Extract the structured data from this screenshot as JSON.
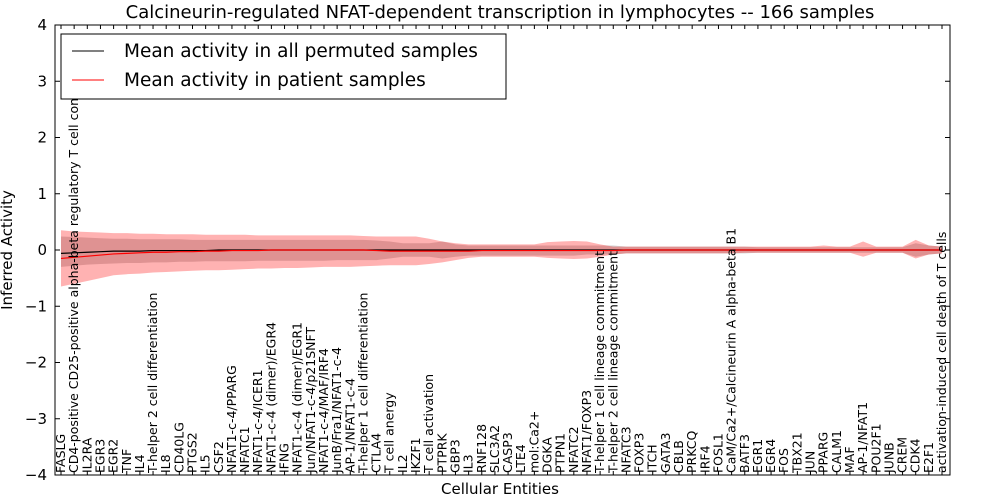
{
  "chart_data": {
    "type": "line",
    "title": "Calcineurin-regulated NFAT-dependent transcription in lymphocytes -- 166 samples",
    "xlabel": "Cellular Entities",
    "ylabel": "Inferred Activity",
    "ylim": [
      -4,
      4
    ],
    "yticks": [
      -4,
      -3,
      -2,
      -1,
      0,
      1,
      2,
      3,
      4
    ],
    "ytick_labels": [
      "−4",
      "−3",
      "−2",
      "−1",
      "0",
      "1",
      "2",
      "3",
      "4"
    ],
    "legend_position": "upper-left",
    "categories": [
      "FASLG",
      "CD4-positive CD25-positive alpha-beta regulatory T cell commitment",
      "IL2RA",
      "EGR3",
      "EGR2",
      "TNF",
      "IL4",
      "T-helper 2 cell differentiation",
      "IL8",
      "CD40LG",
      "PTGS2",
      "IL5",
      "CSF2",
      "NFAT1-c-4/PPARG",
      "NFATC1",
      "NFAT1-c-4/ICER1",
      "NFAT1-c-4 (dimer)/EGR4",
      "IFNG",
      "NFAT1-c-4 (dimer)/EGR1",
      "Jun/NFAT1-c-4/p21SNFT",
      "NFAT1-c-4/MAF/IRF4",
      "JunB/Fra1/NFAT1-c-4",
      "AP-1/NFAT1-c-4",
      "T-helper 1 cell differentiation",
      "CTLA4",
      "T cell anergy",
      "IL2",
      "IKZF1",
      "T cell activation",
      "PTPRK",
      "GBP3",
      "IL3",
      "RNF128",
      "SLC3A2",
      "CASP3",
      "LTE4",
      "mol:Ca2+",
      "DGKA",
      "PTPN1",
      "NFATC2",
      "NFAT1/FOXP3",
      "T-helper 1 cell lineage commitment",
      "T-helper 2 cell lineage commitment",
      "NFATC3",
      "FOXP3",
      "ITCH",
      "GATA3",
      "CBLB",
      "PRKCQ",
      "IRF4",
      "FOSL1",
      "CaM/Ca2+/Calcineurin A alpha-beta B1",
      "BATF3",
      "EGR1",
      "EGR4",
      "FOS",
      "TBX21",
      "JUN",
      "PPARG",
      "CALM1",
      "MAF",
      "AP-1/NFAT1",
      "POU2F1",
      "JUNB",
      "CREM",
      "CDK4",
      "E2F1",
      "activation-induced cell death of T cells"
    ],
    "series": [
      {
        "name": "Mean activity in all permuted samples",
        "color": "#000000",
        "values": [
          -0.06,
          -0.05,
          -0.04,
          -0.03,
          -0.02,
          -0.02,
          -0.02,
          -0.01,
          -0.01,
          -0.01,
          -0.01,
          -0.01,
          0.0,
          0.0,
          0.0,
          0.0,
          0.0,
          0.0,
          0.0,
          0.0,
          0.0,
          0.0,
          0.0,
          0.0,
          0.0,
          0.0,
          0.0,
          0.0,
          0.0,
          0.0,
          0.0,
          0.0,
          0.0,
          0.0,
          0.0,
          0.0,
          0.0,
          0.0,
          0.0,
          0.0,
          0.0,
          0.0,
          0.0,
          0.0,
          0.0,
          0.0,
          0.0,
          0.0,
          0.0,
          0.0,
          0.0,
          0.0,
          0.0,
          0.0,
          0.0,
          0.0,
          0.0,
          0.0,
          0.0,
          0.0,
          0.0,
          0.0,
          0.0,
          0.0,
          0.0,
          0.0,
          0.0,
          0.0
        ],
        "band_lower": [
          -0.3,
          -0.28,
          -0.26,
          -0.25,
          -0.24,
          -0.23,
          -0.23,
          -0.22,
          -0.22,
          -0.21,
          -0.21,
          -0.2,
          -0.2,
          -0.2,
          -0.2,
          -0.19,
          -0.19,
          -0.19,
          -0.19,
          -0.19,
          -0.19,
          -0.18,
          -0.18,
          -0.18,
          -0.18,
          -0.15,
          -0.12,
          -0.12,
          -0.12,
          -0.15,
          -0.12,
          -0.1,
          -0.1,
          -0.1,
          -0.1,
          -0.1,
          -0.1,
          -0.1,
          -0.1,
          -0.1,
          -0.08,
          -0.08,
          -0.08,
          -0.06,
          -0.06,
          -0.06,
          -0.06,
          -0.06,
          -0.06,
          -0.06,
          -0.06,
          -0.06,
          -0.06,
          -0.05,
          -0.05,
          -0.05,
          -0.05,
          -0.05,
          -0.05,
          -0.05,
          -0.05,
          -0.05,
          -0.05,
          -0.05,
          -0.05,
          -0.12,
          -0.08,
          -0.06
        ],
        "band_upper": [
          0.24,
          0.23,
          0.22,
          0.21,
          0.2,
          0.2,
          0.19,
          0.19,
          0.19,
          0.19,
          0.18,
          0.18,
          0.18,
          0.18,
          0.18,
          0.18,
          0.18,
          0.18,
          0.18,
          0.18,
          0.18,
          0.18,
          0.18,
          0.18,
          0.17,
          0.15,
          0.12,
          0.12,
          0.12,
          0.15,
          0.1,
          0.08,
          0.08,
          0.08,
          0.08,
          0.08,
          0.08,
          0.08,
          0.08,
          0.08,
          0.08,
          0.08,
          0.08,
          0.06,
          0.06,
          0.06,
          0.06,
          0.06,
          0.06,
          0.06,
          0.06,
          0.06,
          0.06,
          0.05,
          0.05,
          0.05,
          0.05,
          0.05,
          0.05,
          0.05,
          0.05,
          0.05,
          0.05,
          0.05,
          0.05,
          0.12,
          0.08,
          0.06
        ]
      },
      {
        "name": "Mean activity in patient samples",
        "color": "#ff0000",
        "values": [
          -0.15,
          -0.13,
          -0.11,
          -0.09,
          -0.07,
          -0.06,
          -0.05,
          -0.04,
          -0.04,
          -0.03,
          -0.03,
          -0.02,
          -0.02,
          -0.01,
          -0.01,
          -0.01,
          0.0,
          0.0,
          0.0,
          0.0,
          0.0,
          0.0,
          0.0,
          0.0,
          -0.01,
          -0.02,
          -0.02,
          -0.02,
          -0.02,
          -0.02,
          -0.02,
          -0.02,
          -0.01,
          -0.01,
          -0.01,
          -0.01,
          -0.01,
          -0.01,
          -0.01,
          -0.01,
          -0.01,
          -0.01,
          -0.01,
          0.0,
          0.0,
          0.0,
          0.0,
          0.0,
          0.0,
          0.0,
          0.0,
          0.0,
          0.0,
          0.0,
          0.0,
          0.0,
          0.0,
          0.0,
          0.0,
          0.0,
          0.0,
          0.0,
          0.0,
          0.0,
          0.0,
          0.0,
          0.0,
          0.0
        ],
        "band_lower": [
          -0.65,
          -0.6,
          -0.55,
          -0.5,
          -0.45,
          -0.43,
          -0.42,
          -0.4,
          -0.39,
          -0.38,
          -0.37,
          -0.36,
          -0.36,
          -0.35,
          -0.34,
          -0.33,
          -0.33,
          -0.32,
          -0.32,
          -0.31,
          -0.3,
          -0.3,
          -0.3,
          -0.29,
          -0.28,
          -0.27,
          -0.27,
          -0.27,
          -0.25,
          -0.22,
          -0.18,
          -0.14,
          -0.12,
          -0.12,
          -0.12,
          -0.12,
          -0.12,
          -0.14,
          -0.15,
          -0.16,
          -0.15,
          -0.12,
          -0.08,
          -0.06,
          -0.06,
          -0.06,
          -0.06,
          -0.06,
          -0.06,
          -0.06,
          -0.06,
          -0.06,
          -0.05,
          -0.05,
          -0.05,
          -0.05,
          -0.05,
          -0.05,
          -0.05,
          -0.05,
          -0.05,
          -0.12,
          -0.05,
          -0.05,
          -0.05,
          -0.15,
          -0.08,
          -0.06
        ],
        "band_upper": [
          0.35,
          0.33,
          0.32,
          0.31,
          0.3,
          0.3,
          0.29,
          0.29,
          0.28,
          0.28,
          0.28,
          0.27,
          0.27,
          0.27,
          0.27,
          0.26,
          0.26,
          0.26,
          0.26,
          0.26,
          0.26,
          0.26,
          0.26,
          0.25,
          0.24,
          0.24,
          0.24,
          0.24,
          0.2,
          0.15,
          0.12,
          0.1,
          0.1,
          0.1,
          0.1,
          0.1,
          0.1,
          0.14,
          0.15,
          0.16,
          0.15,
          0.1,
          0.06,
          0.06,
          0.06,
          0.06,
          0.06,
          0.06,
          0.06,
          0.06,
          0.06,
          0.06,
          0.06,
          0.06,
          0.06,
          0.06,
          0.06,
          0.06,
          0.08,
          0.06,
          0.06,
          0.15,
          0.06,
          0.06,
          0.06,
          0.18,
          0.08,
          0.06
        ]
      }
    ]
  }
}
